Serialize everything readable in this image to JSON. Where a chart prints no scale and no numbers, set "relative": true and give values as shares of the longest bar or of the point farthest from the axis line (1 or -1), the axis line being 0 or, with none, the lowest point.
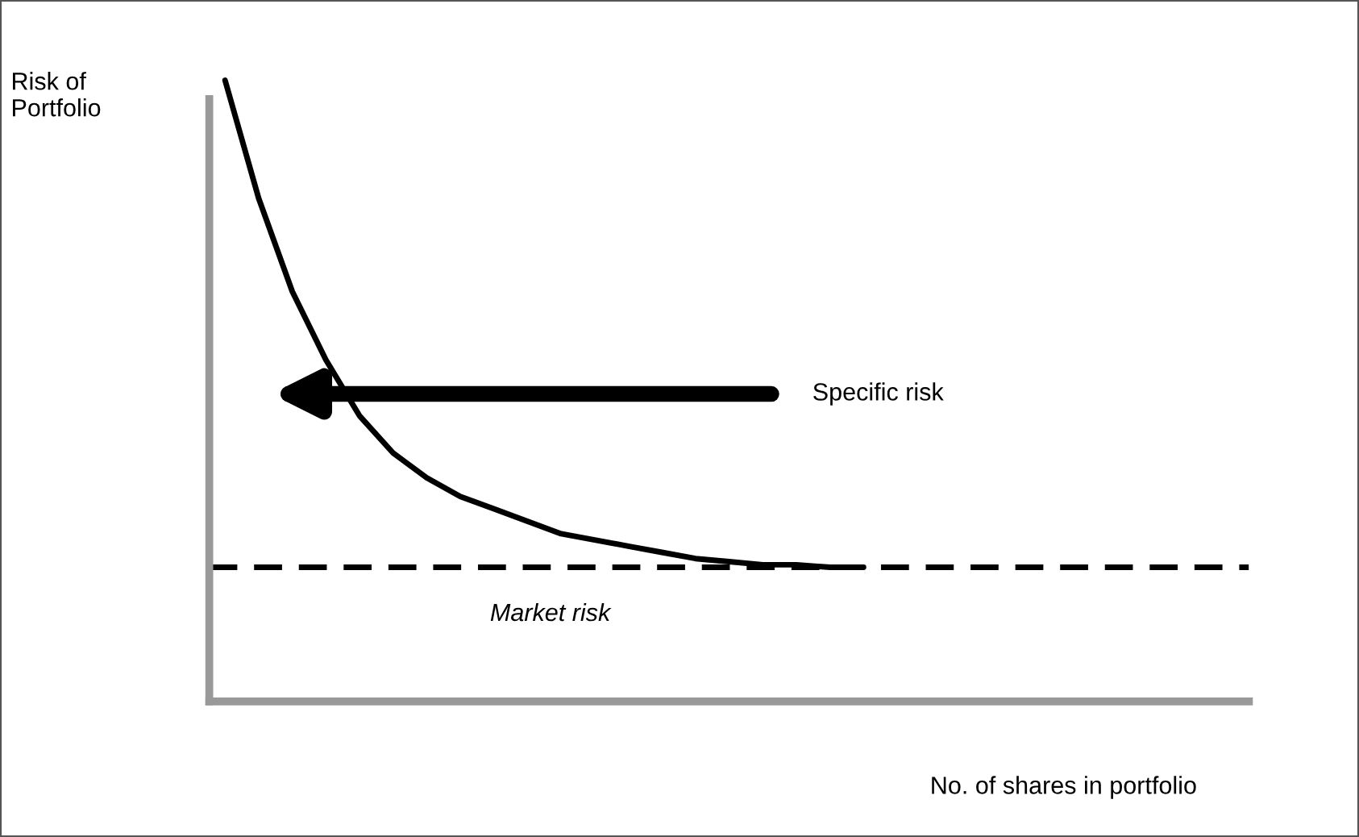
{
  "chart_data": {
    "type": "line",
    "relative": true,
    "xlabel": "No. of shares in portfolio",
    "ylabel": "Risk of\nPortfolio",
    "categories": [
      null,
      null,
      null,
      null,
      null,
      null,
      null,
      null,
      null,
      null,
      null,
      null,
      null,
      null,
      null,
      null,
      null,
      null,
      null,
      null,
      null,
      null,
      null,
      null,
      null,
      null,
      null,
      null,
      null,
      null,
      null
    ],
    "series": [
      {
        "color": "#000000",
        "values": [
          1.0,
          0.81,
          0.66,
          0.55,
          0.46,
          0.4,
          0.36,
          0.33,
          0.31,
          0.29,
          0.27,
          0.26,
          0.25,
          0.24,
          0.23,
          0.225,
          0.22,
          0.22,
          0.216,
          0.216,
          null,
          null,
          null,
          null,
          null,
          null,
          null,
          null,
          null,
          null,
          null
        ]
      }
    ],
    "ref_lines": [
      {
        "axis": "y",
        "value": 0.216,
        "label": "Market risk",
        "color": "#000000",
        "line_style": "dashed"
      }
    ],
    "annotations": [
      "Specific risk"
    ],
    "line_style": "solid",
    "marker": "none",
    "grid": false,
    "legend": false
  }
}
